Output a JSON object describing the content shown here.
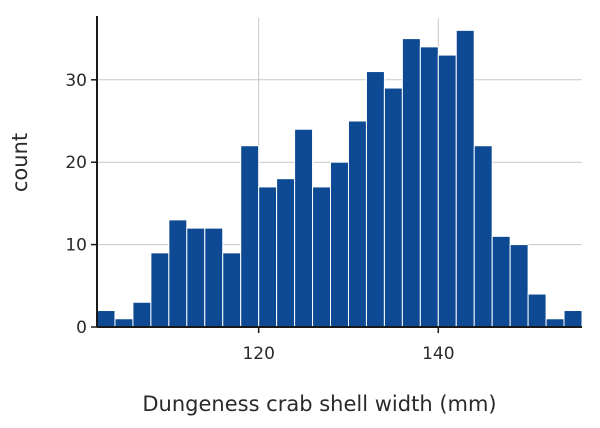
{
  "chart_data": {
    "type": "bar",
    "xlabel": "Dungeness crab shell width (mm)",
    "ylabel": "count",
    "bin_width": 2,
    "bins_start": [
      102,
      104,
      106,
      108,
      110,
      112,
      114,
      116,
      118,
      120,
      122,
      124,
      126,
      128,
      130,
      132,
      134,
      136,
      138,
      140,
      142,
      144,
      146,
      148,
      150,
      152,
      154
    ],
    "values": [
      2,
      1,
      3,
      9,
      13,
      12,
      12,
      9,
      22,
      17,
      18,
      24,
      17,
      20,
      25,
      31,
      29,
      35,
      34,
      33,
      36,
      22,
      11,
      10,
      4,
      1,
      2
    ],
    "xlim": [
      102,
      156
    ],
    "ylim": [
      0,
      37.5
    ],
    "x_ticks": [
      120,
      140
    ],
    "y_ticks": [
      0,
      10,
      20,
      30
    ],
    "grid": true,
    "bar_color": "#0d4a93",
    "bar_edge_color": "#ffffff",
    "grid_color": "#c8c8c8"
  }
}
